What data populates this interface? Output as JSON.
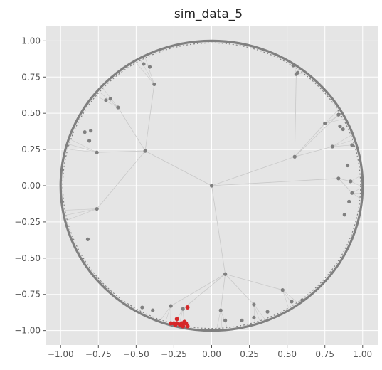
{
  "chart_data": {
    "type": "scatter",
    "title": "sim_data_5",
    "xlabel": "",
    "ylabel": "",
    "xlim": [
      -1.1,
      1.1
    ],
    "ylim": [
      -1.1,
      1.1
    ],
    "x_ticks": [
      "−1.00",
      "−0.75",
      "−0.50",
      "−0.25",
      "0.00",
      "0.25",
      "0.50",
      "0.75",
      "1.00"
    ],
    "y_ticks": [
      "1.00",
      "0.75",
      "0.50",
      "0.25",
      "0.00",
      "−0.25",
      "−0.50",
      "−0.75",
      "−1.00"
    ],
    "x_tick_values": [
      -1.0,
      -0.75,
      -0.5,
      -0.25,
      0.0,
      0.25,
      0.5,
      0.75,
      1.0
    ],
    "y_tick_values": [
      1.0,
      0.75,
      0.5,
      0.25,
      0.0,
      -0.25,
      -0.5,
      -0.75,
      -1.0
    ],
    "grid": true,
    "background": "#e5e5e5",
    "colors": {
      "nodes": "#808080",
      "highlight": "#d62728",
      "edges": "#c8c8c8",
      "boundary": "#808080"
    },
    "boundary_circle": {
      "center": [
        0,
        0
      ],
      "radius": 1.0
    },
    "root": [
      0.0,
      0.0
    ],
    "hubs": [
      {
        "point": [
          0.09,
          -0.61
        ],
        "children": [
          [
            -0.19,
            -0.85
          ],
          [
            0.47,
            -0.72
          ],
          [
            0.06,
            -0.86
          ],
          [
            0.28,
            -0.82
          ],
          [
            -0.27,
            -0.83
          ]
        ]
      },
      {
        "point": [
          -0.44,
          0.24
        ],
        "children": [
          [
            -0.76,
            0.23
          ],
          [
            -0.38,
            0.7
          ],
          [
            -0.62,
            0.54
          ],
          [
            -0.76,
            -0.16
          ]
        ]
      },
      {
        "point": [
          0.55,
          0.2
        ],
        "children": [
          [
            0.8,
            0.27
          ],
          [
            0.56,
            0.77
          ],
          [
            0.75,
            0.43
          ],
          [
            0.84,
            0.49
          ]
        ]
      },
      {
        "point": [
          0.84,
          0.05
        ],
        "children": [
          [
            0.92,
            0.03
          ],
          [
            0.93,
            -0.05
          ]
        ]
      }
    ],
    "leaf_points": [
      [
        -0.82,
        -0.37
      ],
      [
        -0.45,
        0.84
      ],
      [
        -0.41,
        0.82
      ],
      [
        -0.7,
        0.59
      ],
      [
        -0.67,
        0.6
      ],
      [
        -0.84,
        0.37
      ],
      [
        0.91,
        -0.11
      ],
      [
        0.85,
        0.41
      ],
      [
        0.87,
        0.39
      ],
      [
        0.37,
        -0.87
      ],
      [
        0.53,
        -0.8
      ],
      [
        0.6,
        -0.79
      ],
      [
        -0.46,
        -0.84
      ],
      [
        -0.39,
        -0.86
      ],
      [
        0.09,
        -0.93
      ],
      [
        0.2,
        -0.93
      ],
      [
        0.28,
        -0.91
      ],
      [
        -0.8,
        0.38
      ],
      [
        0.54,
        0.83
      ],
      [
        0.57,
        0.78
      ],
      [
        -0.81,
        0.31
      ],
      [
        0.93,
        0.28
      ],
      [
        0.9,
        0.14
      ],
      [
        0.88,
        -0.2
      ]
    ],
    "highlight_points": [
      [
        -0.16,
        -0.84
      ],
      [
        -0.23,
        -0.92
      ],
      [
        -0.27,
        -0.95
      ],
      [
        -0.25,
        -0.95
      ],
      [
        -0.23,
        -0.95
      ],
      [
        -0.21,
        -0.96
      ],
      [
        -0.2,
        -0.95
      ],
      [
        -0.18,
        -0.94
      ],
      [
        -0.17,
        -0.95
      ],
      [
        -0.16,
        -0.97
      ],
      [
        -0.19,
        -0.97
      ],
      [
        -0.24,
        -0.96
      ]
    ]
  }
}
